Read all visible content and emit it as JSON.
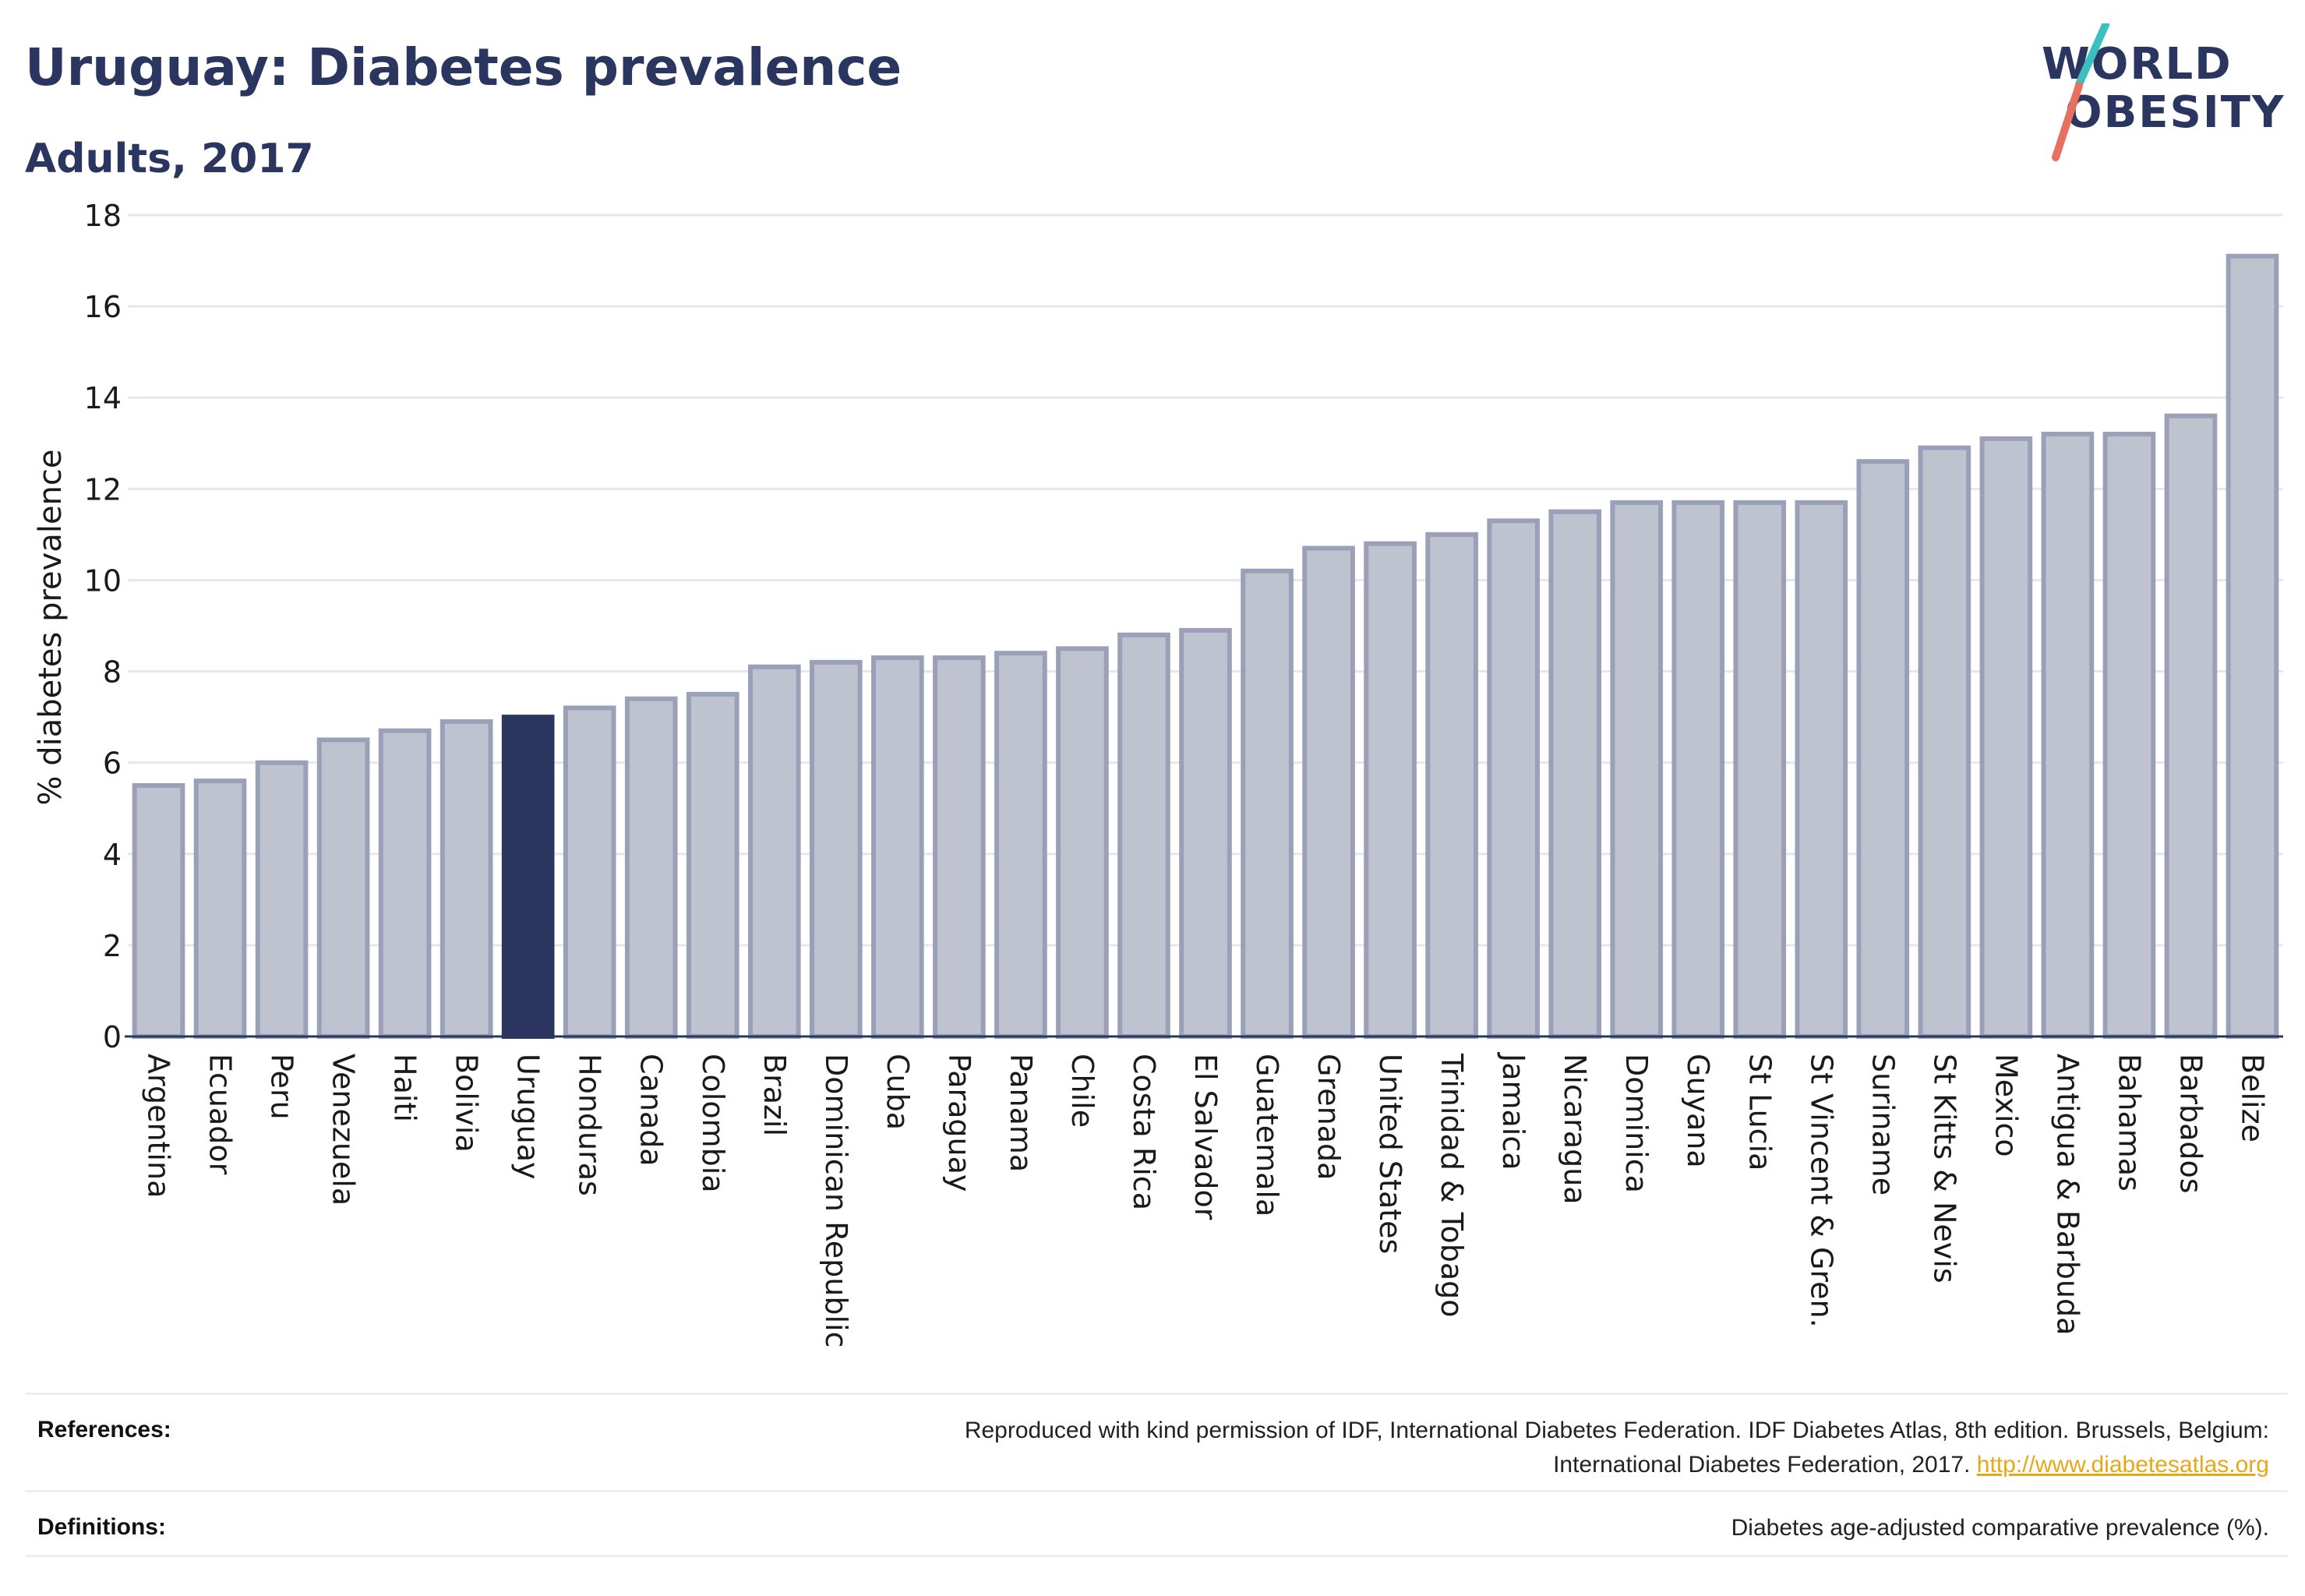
{
  "header": {
    "title": "Uruguay: Diabetes prevalence",
    "subtitle": "Adults, 2017"
  },
  "logo": {
    "line1": "WORLD",
    "line2": "OBESITY",
    "colors": {
      "text": "#2b3660",
      "teal": "#3bbfbf",
      "coral": "#e8705f"
    }
  },
  "chart_data": {
    "type": "bar",
    "ylabel": "% diabetes prevalence",
    "xlabel": "",
    "ylim": [
      0,
      18
    ],
    "yticks": [
      0,
      2,
      4,
      6,
      8,
      10,
      12,
      14,
      16,
      18
    ],
    "grid": true,
    "highlight": "Uruguay",
    "colors": {
      "bar": "#bfc2cf",
      "bar_border": "#9aa0b8",
      "highlight": "#2b3660"
    },
    "categories": [
      "Argentina",
      "Ecuador",
      "Peru",
      "Venezuela",
      "Haiti",
      "Bolivia",
      "Uruguay",
      "Honduras",
      "Canada",
      "Colombia",
      "Brazil",
      "Dominican Republic",
      "Cuba",
      "Paraguay",
      "Panama",
      "Chile",
      "Costa Rica",
      "El Salvador",
      "Guatemala",
      "Grenada",
      "United States",
      "Trinidad & Tobago",
      "Jamaica",
      "Nicaragua",
      "Dominica",
      "Guyana",
      "St Lucia",
      "St Vincent & Gren.",
      "Suriname",
      "St Kitts & Nevis",
      "Mexico",
      "Antigua & Barbuda",
      "Bahamas",
      "Barbados",
      "Belize"
    ],
    "values": [
      5.5,
      5.6,
      6.0,
      6.5,
      6.7,
      6.9,
      7.0,
      7.2,
      7.4,
      7.5,
      8.1,
      8.2,
      8.3,
      8.3,
      8.4,
      8.5,
      8.8,
      8.9,
      10.2,
      10.7,
      10.8,
      11.0,
      11.3,
      11.5,
      11.7,
      11.7,
      11.7,
      11.7,
      12.6,
      12.9,
      13.1,
      13.2,
      13.2,
      13.6,
      17.1
    ]
  },
  "footer": {
    "references_label": "References:",
    "references_text_line1": "Reproduced with kind permission of IDF, International Diabetes Federation. IDF Diabetes Atlas, 8th edition. Brussels, Belgium:",
    "references_text_line2": "International Diabetes Federation, 2017.",
    "references_link": "http://www.diabetesatlas.org",
    "definitions_label": "Definitions:",
    "definitions_text": "Diabetes age-adjusted comparative prevalence (%)."
  }
}
